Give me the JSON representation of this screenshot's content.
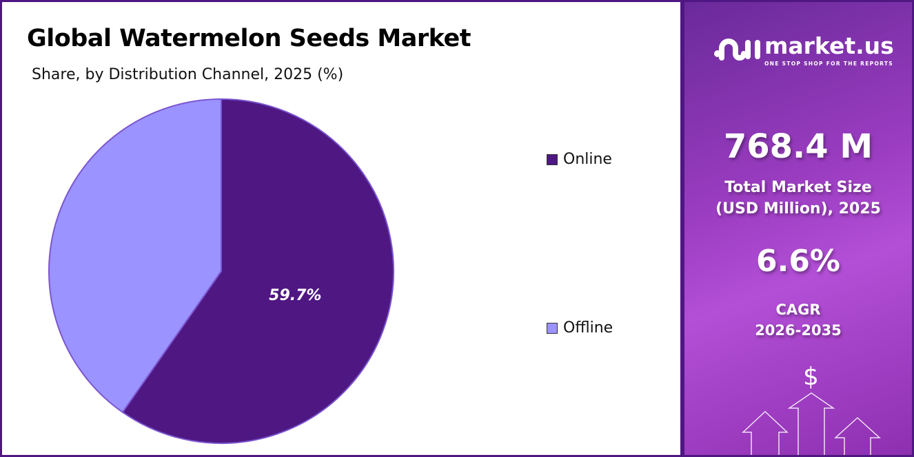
{
  "chart_data": {
    "type": "pie",
    "title": "Global Watermelon Seeds Market",
    "subtitle": "Share, by Distribution Channel, 2025 (%)",
    "slices": [
      {
        "label": "Online",
        "value": 59.7,
        "color": "#4E1782",
        "data_label": "59.7%"
      },
      {
        "label": "Offline",
        "value": 40.3,
        "color": "#9B93FF"
      }
    ],
    "legend_placement": "right"
  },
  "sidebar": {
    "brand": "market.us",
    "tagline": "ONE STOP SHOP FOR THE REPORTS",
    "market_size": "768.4 M",
    "market_size_label_1": "Total Market Size",
    "market_size_label_2": "(USD Million), 2025",
    "cagr": "6.6%",
    "cagr_label": "CAGR",
    "cagr_period": "2026-2035",
    "dollar": "$"
  }
}
